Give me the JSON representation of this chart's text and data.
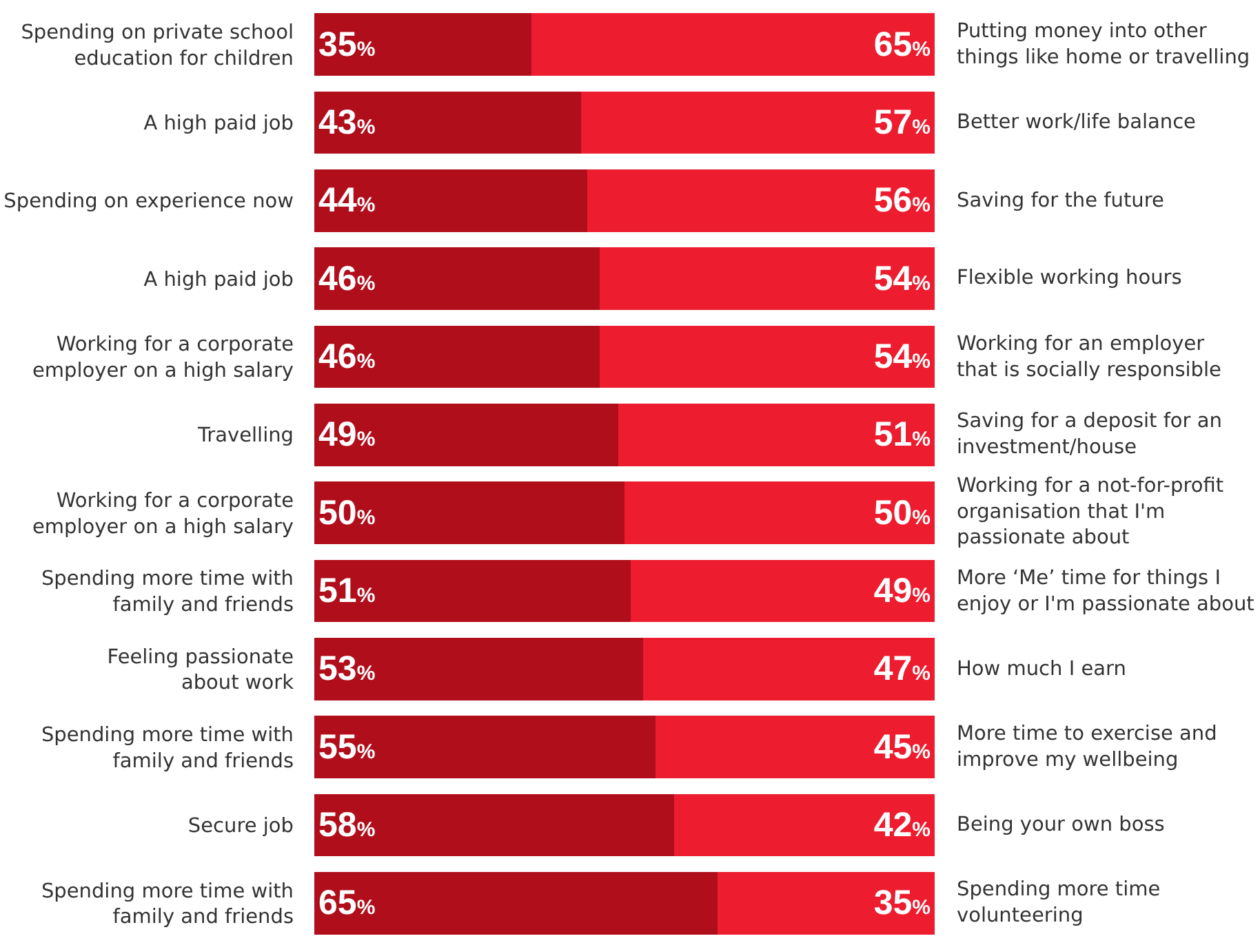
{
  "chart_data": {
    "type": "bar",
    "orientation": "horizontal",
    "stacked": true,
    "xlim": [
      0,
      100
    ],
    "tick_labels": "y",
    "categories": [
      "Spending on private school\neducation for children",
      "A high paid job",
      "Spending on experience now",
      "A high paid job",
      "Working for a corporate\nemployer on a high salary",
      "Travelling",
      "Working for a corporate\nemployer on a high salary",
      "Spending more time with\nfamily and friends",
      "Feeling passionate\nabout work",
      "Spending more time with\nfamily and friends",
      "Secure job",
      "Spending more time with\nfamily and friends"
    ],
    "series": [
      {
        "color": "#b10e1c",
        "values": [
          35,
          43,
          44,
          46,
          46,
          49,
          50,
          51,
          53,
          55,
          58,
          65
        ],
        "value_labels": [
          "35%",
          "43%",
          "44%",
          "46%",
          "46%",
          "49%",
          "50%",
          "51%",
          "53%",
          "55%",
          "58%",
          "65%"
        ]
      },
      {
        "color": "#ed1c2e",
        "values": [
          65,
          57,
          56,
          54,
          54,
          51,
          50,
          49,
          47,
          45,
          42,
          35
        ],
        "value_labels": [
          "65%",
          "57%",
          "56%",
          "54%",
          "54%",
          "51%",
          "50%",
          "49%",
          "47%",
          "45%",
          "42%",
          "35%"
        ]
      }
    ],
    "annotations": [
      "Putting money into other\nthings like home or travelling",
      "Better work/life balance",
      "Saving for the future",
      "Flexible working hours",
      "Working for an employer\nthat is socially responsible",
      "Saving for a deposit for an\ninvestment/house",
      "Working for a not-for-profit\norganisation that I'm\npassionate about",
      "More ‘Me’ time for things I\nenjoy or I'm passionate about",
      "How much I earn",
      "More time to exercise and\nimprove my wellbeing",
      "Being your own boss",
      "Spending more time\nvolunteering"
    ]
  }
}
